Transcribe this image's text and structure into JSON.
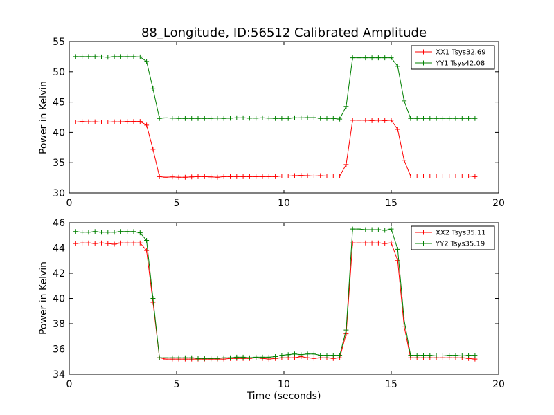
{
  "colors": {
    "red": "#ff0000",
    "green": "#008000"
  },
  "chart_data": [
    {
      "type": "line",
      "title": "88_Longitude, ID:56512 Calibrated Amplitude",
      "xlabel": "",
      "ylabel": "Power in Kelvin",
      "xlim": [
        0,
        20
      ],
      "ylim": [
        30,
        55
      ],
      "xticks": [
        0,
        5,
        10,
        15,
        20
      ],
      "yticks": [
        30,
        35,
        40,
        45,
        50,
        55
      ],
      "grid": false,
      "legend_position": "top-right",
      "x": [
        0.3,
        0.6,
        0.9,
        1.2,
        1.5,
        1.8,
        2.1,
        2.4,
        2.7,
        3.0,
        3.3,
        3.6,
        3.9,
        4.2,
        4.5,
        4.8,
        5.1,
        5.4,
        5.7,
        6.0,
        6.3,
        6.6,
        6.9,
        7.2,
        7.5,
        7.8,
        8.1,
        8.4,
        8.7,
        9.0,
        9.3,
        9.6,
        9.9,
        10.2,
        10.5,
        10.8,
        11.1,
        11.4,
        11.7,
        12.0,
        12.3,
        12.6,
        12.9,
        13.2,
        13.5,
        13.8,
        14.1,
        14.4,
        14.7,
        15.0,
        15.3,
        15.6,
        15.9,
        16.2,
        16.5,
        16.8,
        17.1,
        17.4,
        17.7,
        18.0,
        18.3,
        18.6,
        18.9
      ],
      "series": [
        {
          "name": "XX1 Tsys32.69",
          "color": "#ff0000",
          "values": [
            41.7,
            41.8,
            41.75,
            41.75,
            41.7,
            41.7,
            41.75,
            41.75,
            41.8,
            41.8,
            41.8,
            41.2,
            37.2,
            32.7,
            32.6,
            32.65,
            32.6,
            32.6,
            32.65,
            32.7,
            32.7,
            32.65,
            32.6,
            32.7,
            32.7,
            32.7,
            32.7,
            32.7,
            32.7,
            32.7,
            32.7,
            32.7,
            32.8,
            32.8,
            32.85,
            32.9,
            32.85,
            32.8,
            32.85,
            32.8,
            32.8,
            32.8,
            34.7,
            42.0,
            42.0,
            42.0,
            41.95,
            42.0,
            41.95,
            42.0,
            40.5,
            35.4,
            32.8,
            32.8,
            32.8,
            32.8,
            32.8,
            32.8,
            32.8,
            32.8,
            32.8,
            32.8,
            32.7
          ]
        },
        {
          "name": "YY1 Tsys42.08",
          "color": "#008000",
          "values": [
            52.5,
            52.5,
            52.5,
            52.5,
            52.45,
            52.4,
            52.5,
            52.5,
            52.5,
            52.5,
            52.45,
            51.7,
            47.2,
            42.3,
            42.4,
            42.35,
            42.3,
            42.3,
            42.3,
            42.3,
            42.3,
            42.3,
            42.35,
            42.3,
            42.35,
            42.4,
            42.4,
            42.35,
            42.35,
            42.4,
            42.35,
            42.3,
            42.3,
            42.3,
            42.4,
            42.4,
            42.45,
            42.45,
            42.3,
            42.3,
            42.3,
            42.2,
            44.3,
            52.3,
            52.3,
            52.3,
            52.3,
            52.3,
            52.3,
            52.3,
            50.9,
            45.2,
            42.3,
            42.3,
            42.3,
            42.3,
            42.3,
            42.3,
            42.3,
            42.3,
            42.3,
            42.3,
            42.3
          ]
        }
      ]
    },
    {
      "type": "line",
      "title": "",
      "xlabel": "Time (seconds)",
      "ylabel": "Power in Kelvin",
      "xlim": [
        0,
        20
      ],
      "ylim": [
        34,
        46
      ],
      "xticks": [
        0,
        5,
        10,
        15,
        20
      ],
      "yticks": [
        34,
        36,
        38,
        40,
        42,
        44,
        46
      ],
      "grid": false,
      "legend_position": "top-right",
      "x": [
        0.3,
        0.6,
        0.9,
        1.2,
        1.5,
        1.8,
        2.1,
        2.4,
        2.7,
        3.0,
        3.3,
        3.6,
        3.9,
        4.2,
        4.5,
        4.8,
        5.1,
        5.4,
        5.7,
        6.0,
        6.3,
        6.6,
        6.9,
        7.2,
        7.5,
        7.8,
        8.1,
        8.4,
        8.7,
        9.0,
        9.3,
        9.6,
        9.9,
        10.2,
        10.5,
        10.8,
        11.1,
        11.4,
        11.7,
        12.0,
        12.3,
        12.6,
        12.9,
        13.2,
        13.5,
        13.8,
        14.1,
        14.4,
        14.7,
        15.0,
        15.3,
        15.6,
        15.9,
        16.2,
        16.5,
        16.8,
        17.1,
        17.4,
        17.7,
        18.0,
        18.3,
        18.6,
        18.9
      ],
      "series": [
        {
          "name": "XX2 Tsys35.11",
          "color": "#ff0000",
          "values": [
            44.35,
            44.4,
            44.4,
            44.35,
            44.4,
            44.35,
            44.3,
            44.4,
            44.4,
            44.4,
            44.4,
            43.8,
            39.7,
            35.3,
            35.2,
            35.2,
            35.2,
            35.2,
            35.2,
            35.2,
            35.2,
            35.2,
            35.2,
            35.2,
            35.25,
            35.25,
            35.25,
            35.25,
            35.3,
            35.25,
            35.2,
            35.25,
            35.3,
            35.3,
            35.3,
            35.4,
            35.3,
            35.25,
            35.3,
            35.3,
            35.25,
            35.3,
            37.2,
            44.4,
            44.4,
            44.4,
            44.4,
            44.4,
            44.35,
            44.4,
            43.0,
            37.8,
            35.3,
            35.3,
            35.3,
            35.3,
            35.3,
            35.3,
            35.3,
            35.3,
            35.3,
            35.25,
            35.2
          ]
        },
        {
          "name": "YY2 Tsys35.19",
          "color": "#008000",
          "values": [
            45.3,
            45.25,
            45.25,
            45.3,
            45.25,
            45.25,
            45.25,
            45.3,
            45.3,
            45.3,
            45.2,
            44.6,
            40.0,
            35.3,
            35.3,
            35.3,
            35.3,
            35.3,
            35.3,
            35.25,
            35.25,
            35.25,
            35.25,
            35.3,
            35.3,
            35.35,
            35.35,
            35.3,
            35.35,
            35.35,
            35.35,
            35.4,
            35.5,
            35.55,
            35.6,
            35.55,
            35.6,
            35.6,
            35.5,
            35.5,
            35.5,
            35.5,
            37.5,
            45.5,
            45.5,
            45.45,
            45.45,
            45.45,
            45.4,
            45.5,
            43.9,
            38.3,
            35.5,
            35.5,
            35.5,
            35.5,
            35.45,
            35.45,
            35.5,
            35.5,
            35.45,
            35.5,
            35.5
          ]
        }
      ]
    }
  ]
}
